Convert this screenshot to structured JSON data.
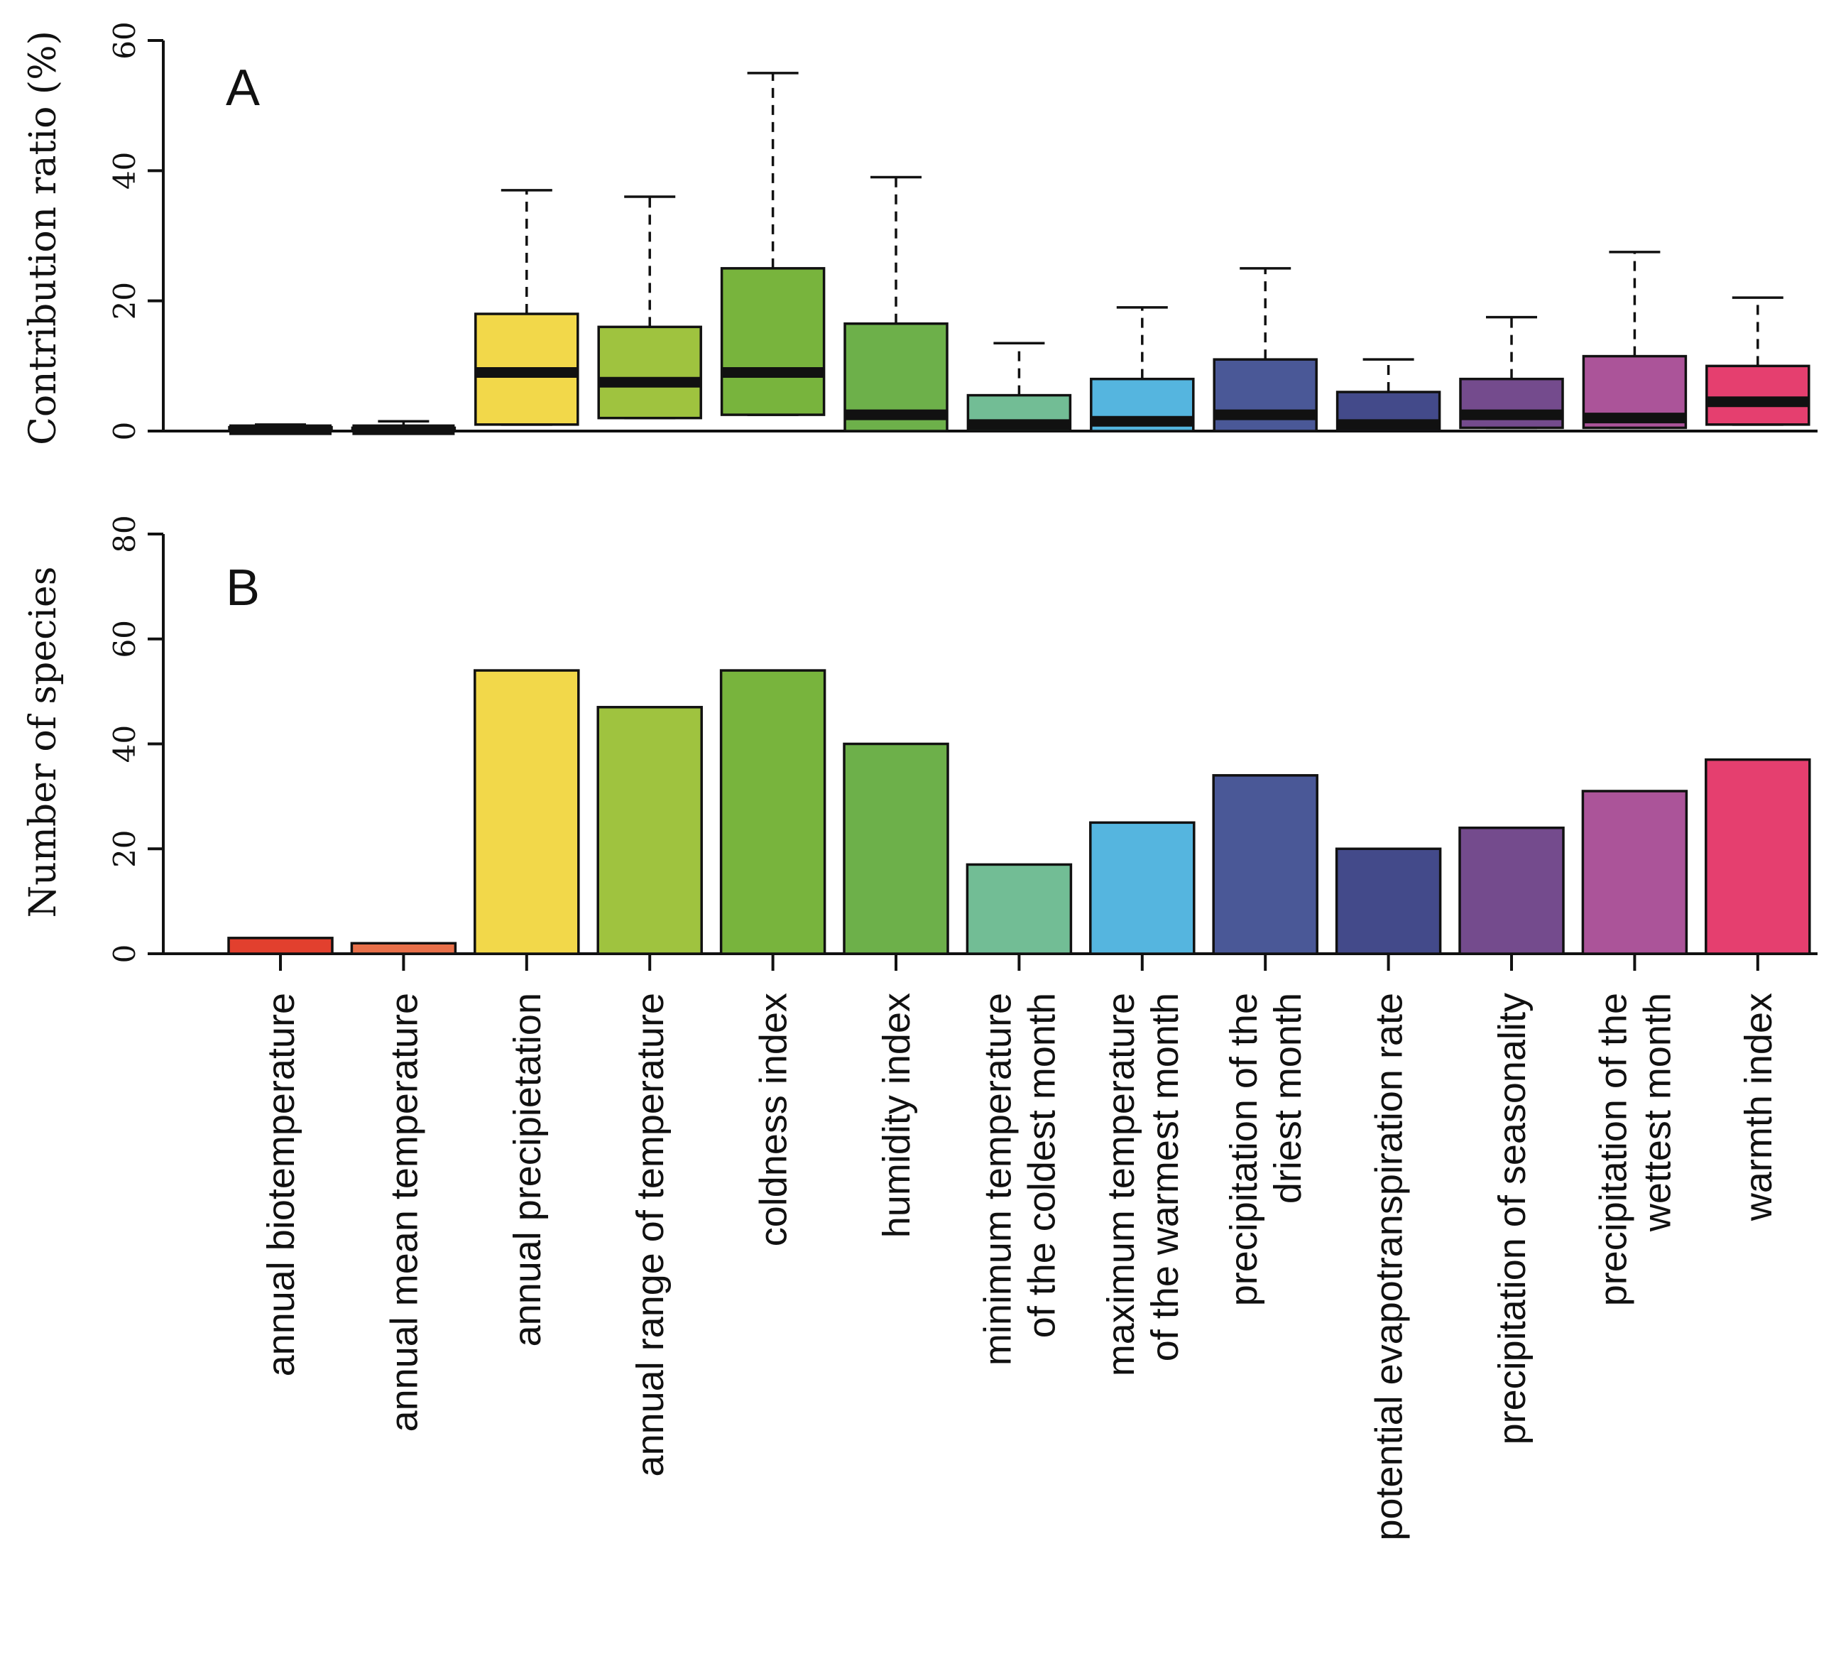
{
  "chart_data": [
    {
      "panel": "A",
      "type": "box",
      "ylabel": "Contribution ratio (%)",
      "ylim": [
        0,
        60
      ],
      "yticks": [
        0,
        20,
        40,
        60
      ],
      "categories": [
        "annual biotemperature",
        "annual mean temperature",
        "annual precipietation",
        "annual range of temperature",
        "coldness index",
        "humidity index",
        "minimum temperature of the coldest month",
        "maximum temperature of the warmest month",
        "precipitation of the driest month",
        "potential evapotranspiration rate",
        "precipitation of seasonality",
        "precipitation of the wettest month",
        "warmth index"
      ],
      "boxes": [
        {
          "whisker_low": 0,
          "q1": 0,
          "median": 0.2,
          "q3": 0.6,
          "whisker_high": 1.0
        },
        {
          "whisker_low": 0,
          "q1": 0,
          "median": 0.2,
          "q3": 0.5,
          "whisker_high": 1.5
        },
        {
          "whisker_low": 1,
          "q1": 1,
          "median": 9,
          "q3": 18,
          "whisker_high": 37
        },
        {
          "whisker_low": 2,
          "q1": 2,
          "median": 7.5,
          "q3": 16,
          "whisker_high": 36
        },
        {
          "whisker_low": 2.5,
          "q1": 2.5,
          "median": 9,
          "q3": 25,
          "whisker_high": 55
        },
        {
          "whisker_low": 0,
          "q1": 0,
          "median": 2.5,
          "q3": 16.5,
          "whisker_high": 39
        },
        {
          "whisker_low": 0,
          "q1": 0,
          "median": 1,
          "q3": 5.5,
          "whisker_high": 13.5
        },
        {
          "whisker_low": 0,
          "q1": 0,
          "median": 1.5,
          "q3": 8,
          "whisker_high": 19
        },
        {
          "whisker_low": 0,
          "q1": 0,
          "median": 2.5,
          "q3": 11,
          "whisker_high": 25
        },
        {
          "whisker_low": 0,
          "q1": 0,
          "median": 1,
          "q3": 6,
          "whisker_high": 11
        },
        {
          "whisker_low": 0.5,
          "q1": 0.5,
          "median": 2.5,
          "q3": 8,
          "whisker_high": 17.5
        },
        {
          "whisker_low": 0.5,
          "q1": 0.5,
          "median": 2,
          "q3": 11.5,
          "whisker_high": 27.5
        },
        {
          "whisker_low": 1,
          "q1": 1,
          "median": 4.5,
          "q3": 10,
          "whisker_high": 20.5
        }
      ],
      "colors": [
        "#e2402e",
        "#e8704a",
        "#f2d84a",
        "#9fc33f",
        "#78b43d",
        "#6db04a",
        "#72bd95",
        "#55b5df",
        "#4a5897",
        "#434a8a",
        "#744b8d",
        "#ab5499",
        "#e53f6f"
      ]
    },
    {
      "panel": "B",
      "type": "bar",
      "ylabel": "Number of species",
      "ylim": [
        0,
        80
      ],
      "yticks": [
        0,
        20,
        40,
        60,
        80
      ],
      "categories": [
        "annual biotemperature",
        "annual mean temperature",
        "annual precipietation",
        "annual range of temperature",
        "coldness index",
        "humidity index",
        "minimum temperature of the coldest month",
        "maximum temperature of the warmest month",
        "precipitation of the driest month",
        "potential evapotranspiration rate",
        "precipitation of seasonality",
        "precipitation of the wettest month",
        "warmth index"
      ],
      "values": [
        3,
        2,
        54,
        47,
        54,
        40,
        17,
        25,
        34,
        20,
        24,
        31,
        37
      ],
      "colors": [
        "#e2402e",
        "#e8704a",
        "#f2d84a",
        "#9fc33f",
        "#78b43d",
        "#6db04a",
        "#72bd95",
        "#55b5df",
        "#4a5897",
        "#434a8a",
        "#744b8d",
        "#ab5499",
        "#e53f6f"
      ]
    }
  ],
  "x_labels": [
    [
      "annual biotemperature"
    ],
    [
      "annual mean temperature"
    ],
    [
      "annual precipietation"
    ],
    [
      "annual range of temperature"
    ],
    [
      "coldness index"
    ],
    [
      "humidity index"
    ],
    [
      "minimum temperature",
      "of the coldest month"
    ],
    [
      "maximum temperature",
      "of the warmest month"
    ],
    [
      "precipitation of the",
      "driest month"
    ],
    [
      "potential evapotranspiration rate"
    ],
    [
      "precipitation of seasonality"
    ],
    [
      "precipitation of the",
      "wettest month"
    ],
    [
      "warmth index"
    ]
  ]
}
